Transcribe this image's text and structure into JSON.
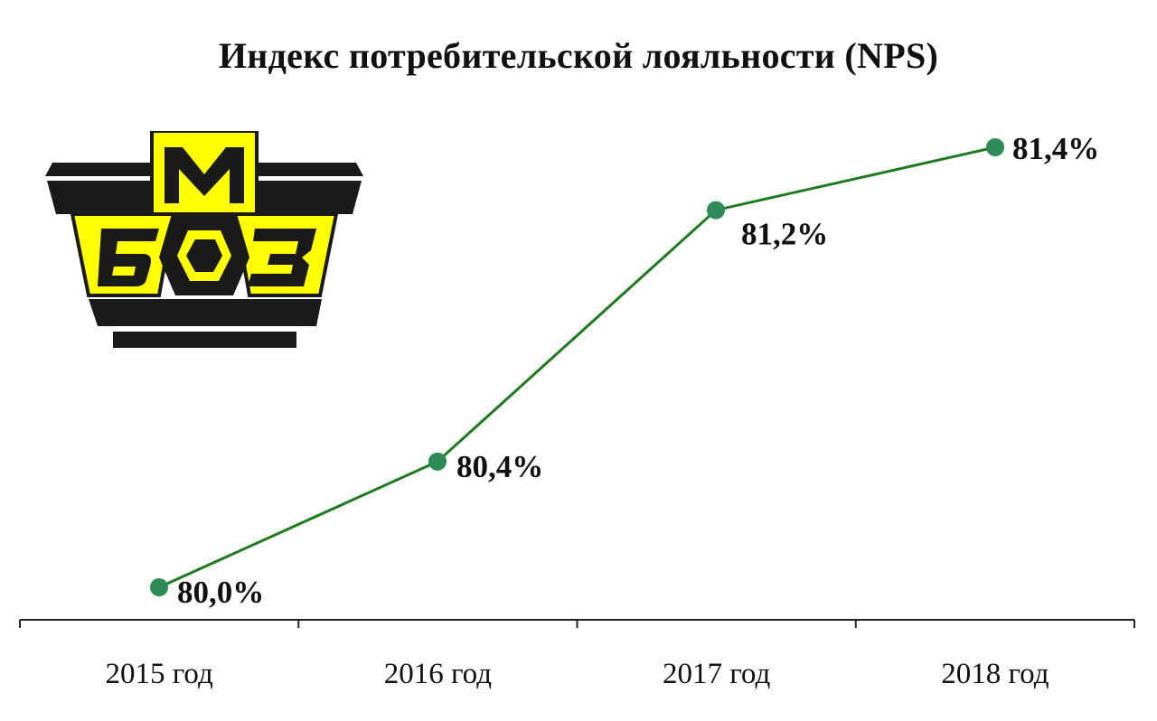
{
  "chart_data": {
    "type": "line",
    "title": "Индекс потребительской лояльности (NPS)",
    "categories": [
      "2015 год",
      "2016 год",
      "2017 год",
      "2018 год"
    ],
    "series": [
      {
        "values": [
          80.0,
          80.4,
          81.2,
          81.4
        ],
        "labels": [
          "80,0%",
          "80,4%",
          "81,2%",
          "81,4%"
        ],
        "color": "#1f7a1f",
        "marker_color": "#2e8b57"
      }
    ],
    "xlabel": "",
    "ylabel": "",
    "grid": false,
    "legend": "none"
  },
  "logo": {
    "letters": "БМЗ",
    "colors": {
      "yellow": "#ffff00",
      "black": "#1a1a1a"
    }
  }
}
